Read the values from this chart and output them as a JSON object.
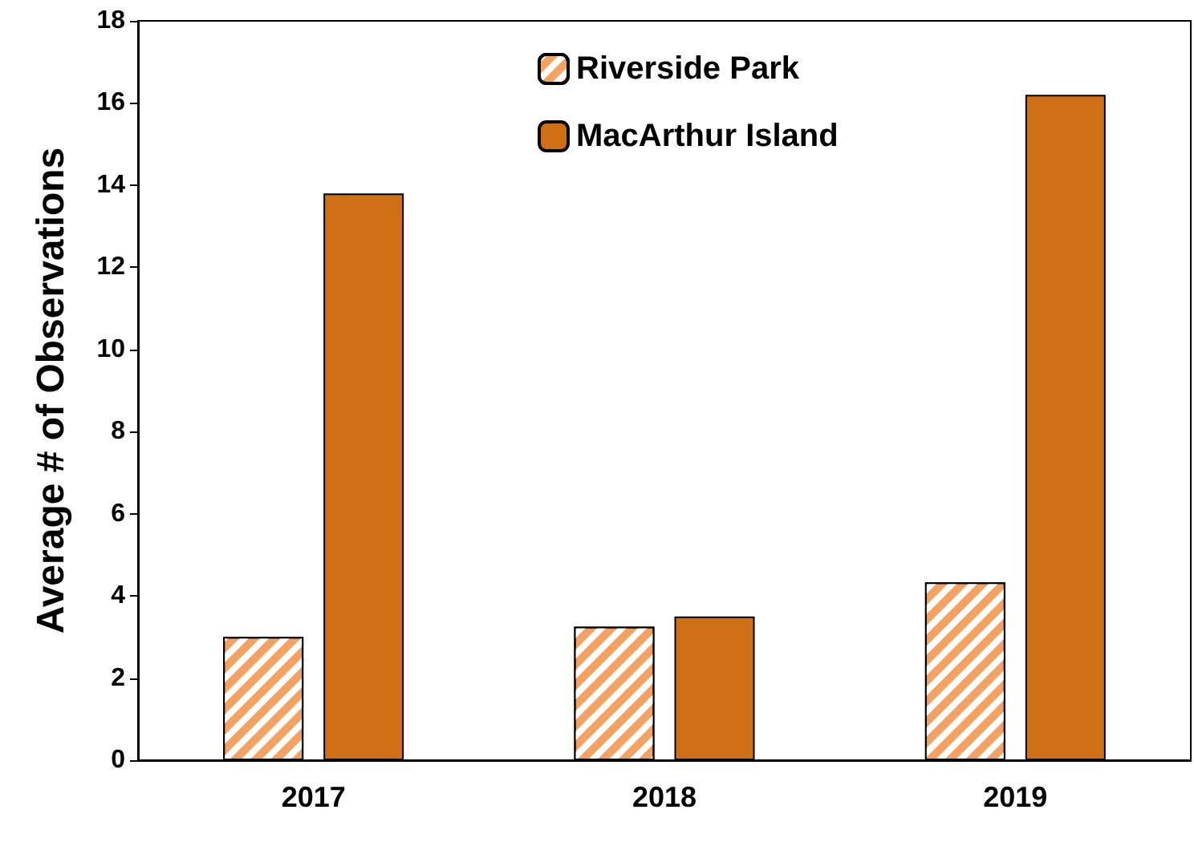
{
  "chart_data": {
    "type": "bar",
    "ylabel": "Average # of Observations",
    "categories": [
      "2017",
      "2018",
      "2019"
    ],
    "series": [
      {
        "name": "Riverside Park",
        "color": "#f4a261",
        "values": [
          3.0,
          3.25,
          4.33
        ]
      },
      {
        "name": "MacArthur Island",
        "color": "#d07016",
        "values": [
          13.8,
          3.5,
          16.2
        ]
      }
    ],
    "ylim": [
      0,
      18
    ],
    "yticks": [
      0,
      2,
      4,
      6,
      8,
      10,
      12,
      14,
      16,
      18
    ],
    "grid": false,
    "legend": "top"
  }
}
